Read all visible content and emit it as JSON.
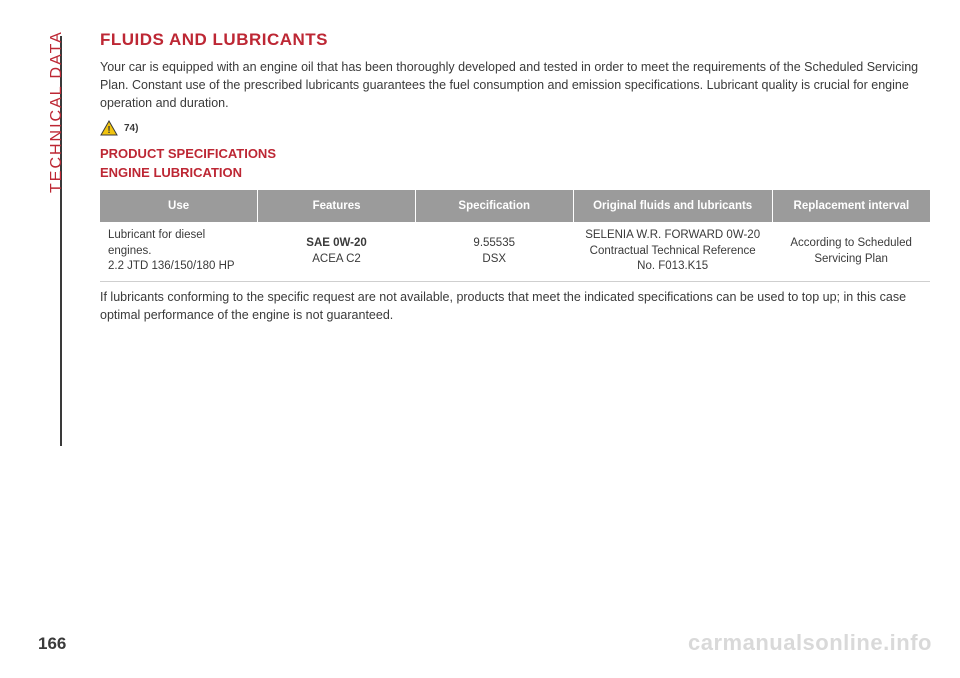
{
  "colors": {
    "brand": "#bd2734",
    "text": "#3a3a3a",
    "thead_bg": "#9b9b9b",
    "thead_text": "#ffffff",
    "row_border": "#cfcfcf",
    "watermark": "#d9d9d9",
    "warn_fill": "#f1c40f",
    "warn_stroke": "#3a3a3a"
  },
  "side_label": "TECHNICAL DATA",
  "page_number": "166",
  "watermark": "carmanualsonline.info",
  "title": "FLUIDS AND LUBRICANTS",
  "intro": "Your car is equipped with an engine oil that has been thoroughly developed and tested in order to meet the requirements of the Scheduled Servicing Plan. Constant use of the prescribed lubricants guarantees the fuel consumption and emission specifications. Lubricant quality is crucial for engine operation and duration.",
  "warning_ref": "74)",
  "subtitle1": "PRODUCT SPECIFICATIONS",
  "subtitle2": "ENGINE LUBRICATION",
  "table": {
    "columns": [
      "Use",
      "Features",
      "Specification",
      "Original fluids and lubricants",
      "Replacement interval"
    ],
    "col_widths": [
      "19%",
      "19%",
      "19%",
      "24%",
      "19%"
    ],
    "rows": [
      {
        "use": "Lubricant for diesel engines.\n2.2 JTD 136/150/180 HP",
        "features_strong": "SAE 0W-20",
        "features_rest": "ACEA C2",
        "specification": "9.55535\nDSX",
        "original": "SELENIA W.R. FORWARD 0W-20\nContractual Technical Reference No. F013.K15",
        "replacement": "According to Scheduled Servicing Plan"
      }
    ]
  },
  "footnote": "If lubricants conforming to the specific request are not available, products that meet the indicated specifications can be used to top up; in this case optimal performance of the engine is not guaranteed."
}
